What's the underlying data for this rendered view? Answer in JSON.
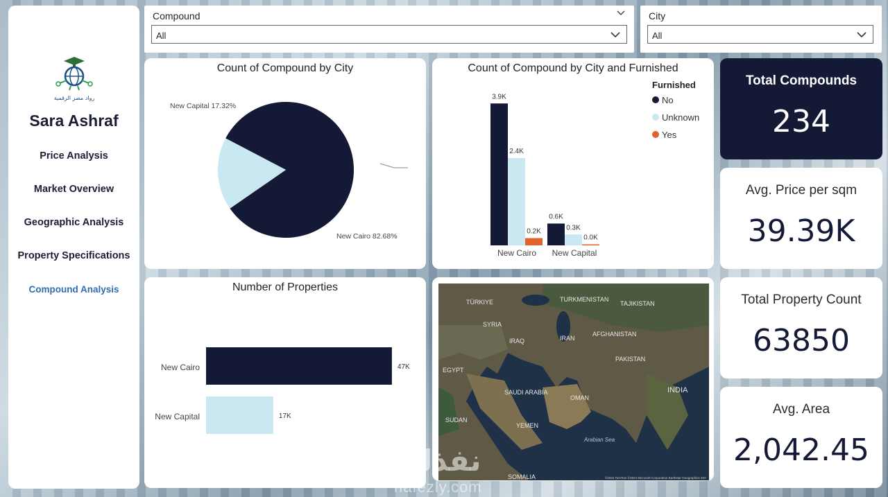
{
  "sidebar": {
    "logo_text": "رواد مصر الرقمية",
    "owner": "Sara Ashraf",
    "nav": [
      {
        "label": "Price Analysis",
        "active": false
      },
      {
        "label": "Market Overview",
        "active": false
      },
      {
        "label": "Geographic Analysis",
        "active": false
      },
      {
        "label": "Property Specifications",
        "active": false
      },
      {
        "label": "Compound Analysis",
        "active": true
      }
    ]
  },
  "filters": {
    "compound": {
      "title": "Compound",
      "value": "All"
    },
    "city": {
      "title": "City",
      "value": "All"
    }
  },
  "pie_chart": {
    "title": "Count of Compound by City",
    "chart_data": {
      "type": "pie",
      "slices": [
        {
          "label": "New Cairo",
          "percent": 82.68,
          "text": "New Cairo 82.68%",
          "color": "#141a36"
        },
        {
          "label": "New Capital",
          "percent": 17.32,
          "text": "New Capital 17.32%",
          "color": "#c9e8f2"
        }
      ]
    }
  },
  "furnished_chart": {
    "title": "Count of Compound by City and Furnished",
    "legend_title": "Furnished",
    "chart_data": {
      "type": "bar",
      "categories": [
        "New Cairo",
        "New Capital"
      ],
      "series": [
        {
          "name": "No",
          "color": "#141a36",
          "values": [
            3.9,
            0.6
          ],
          "labels": [
            "3.9K",
            "0.6K"
          ]
        },
        {
          "name": "Unknown",
          "color": "#c9e8f2",
          "values": [
            2.4,
            0.3
          ],
          "labels": [
            "2.4K",
            "0.3K"
          ]
        },
        {
          "name": "Yes",
          "color": "#e2622a",
          "values": [
            0.2,
            0.0
          ],
          "labels": [
            "0.2K",
            "0.0K"
          ]
        }
      ],
      "ylim": [
        0,
        4
      ],
      "legend_position": "top-right"
    }
  },
  "properties_chart": {
    "title": "Number of Properties",
    "chart_data": {
      "type": "bar",
      "orientation": "horizontal",
      "categories": [
        "New Cairo",
        "New Capital"
      ],
      "values": [
        47,
        17
      ],
      "labels": [
        "47K",
        "17K"
      ],
      "colors": [
        "#141a36",
        "#c9e8f2"
      ],
      "xlim": [
        0,
        50
      ]
    }
  },
  "map": {
    "labels": [
      "TÜRKIYE",
      "TURKMENISTAN",
      "TAJIKISTAN",
      "SYRIA",
      "IRAQ",
      "IRAN",
      "AFGHANISTAN",
      "PAKISTAN",
      "EGYPT",
      "SAUDI ARABIA",
      "OMAN",
      "INDIA",
      "SUDAN",
      "YEMEN",
      "Arabian Sea",
      "SOMALIA"
    ],
    "attribution": "©2024 TomTom ©2024 Microsoft Corporation Earthstar Geographics SIO"
  },
  "kpis": [
    {
      "title": "Total Compounds",
      "value": "234"
    },
    {
      "title": "Avg. Price per sqm",
      "value": "39.39K"
    },
    {
      "title": "Total Property Count",
      "value": "63850"
    },
    {
      "title": "Avg. Area",
      "value": "2,042.45"
    }
  ],
  "watermark": {
    "main": "نفذلي",
    "sub": "nafezly.com"
  }
}
